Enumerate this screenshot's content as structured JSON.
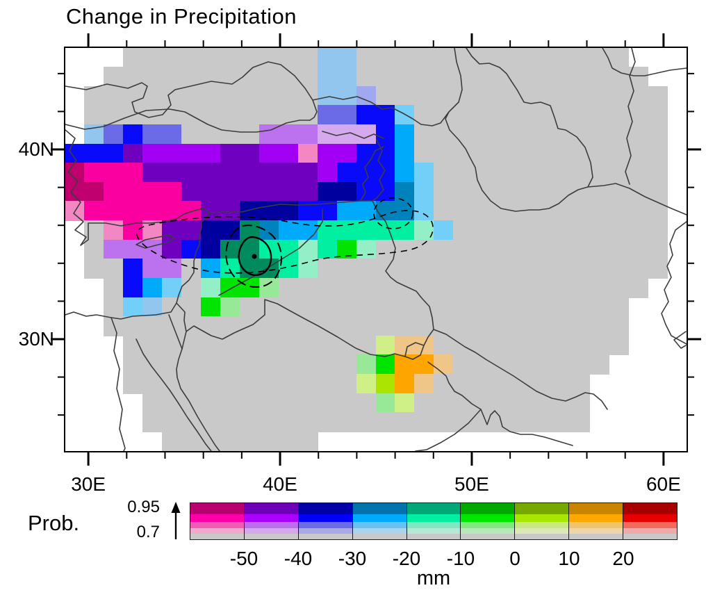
{
  "title": "Change in Precipitation",
  "axes": {
    "lon": {
      "min": 28.8,
      "max": 61.2,
      "major": [
        {
          "value": 30,
          "label": "30E"
        },
        {
          "value": 40,
          "label": "40E"
        },
        {
          "value": 50,
          "label": "50E"
        },
        {
          "value": 60,
          "label": "60E"
        }
      ],
      "minor": [
        32,
        34,
        36,
        38,
        42,
        44,
        46,
        48,
        52,
        54,
        56,
        58
      ]
    },
    "lat": {
      "min": 24.1,
      "max": 45.35,
      "major": [
        {
          "value": 40,
          "label": "40N"
        },
        {
          "value": 30,
          "label": "30N"
        }
      ],
      "minor": [
        44,
        42,
        38,
        36,
        34,
        32,
        28,
        26
      ]
    }
  },
  "colorbar": {
    "prob_label": "Prob.",
    "prob_top": "0.95",
    "prob_bottom": "0.7",
    "arrow_icon": "up-arrow",
    "unit": "mm",
    "tick_labels": [
      "-50",
      "-40",
      "-30",
      "-20",
      "-10",
      "0",
      "10",
      "20"
    ],
    "band_fractions": [
      0.3,
      0.22,
      0.18,
      0.15,
      0.15
    ],
    "columns": [
      {
        "name": "below--50",
        "bands": [
          "#B8006E",
          "#FF00A8",
          "#F05CB4",
          "#EFA9CD",
          "#C9C9C9"
        ]
      },
      {
        "name": "-50_-40",
        "bands": [
          "#6E00B8",
          "#AA00FF",
          "#BB6CEF",
          "#D3A9EC",
          "#C9C9C9"
        ]
      },
      {
        "name": "-40_-30",
        "bands": [
          "#0000A8",
          "#0000FF",
          "#6B6BE8",
          "#A9A9E8",
          "#C9C9C9"
        ]
      },
      {
        "name": "-30_-20",
        "bands": [
          "#0073AD",
          "#00AAFF",
          "#66C2F0",
          "#A9D4EC",
          "#C9C9C9"
        ]
      },
      {
        "name": "-20_-10",
        "bands": [
          "#00A878",
          "#00EFA0",
          "#7FE8C2",
          "#B7E8D6",
          "#C9C9C9"
        ]
      },
      {
        "name": "-10_0",
        "bands": [
          "#00A800",
          "#00E800",
          "#7FE87F",
          "#B7E8B7",
          "#C9C9C9"
        ]
      },
      {
        "name": "0_10",
        "bands": [
          "#78A800",
          "#A8E800",
          "#C9E87F",
          "#DCE8B7",
          "#C9C9C9"
        ]
      },
      {
        "name": "10_20",
        "bands": [
          "#C98500",
          "#FFA800",
          "#EFC46B",
          "#EFD6A9",
          "#C9C9C9"
        ]
      },
      {
        "name": "above_20",
        "bands": [
          "#A80000",
          "#E80000",
          "#F06B5C",
          "#EFA9A9",
          "#C9C9C9"
        ]
      }
    ]
  },
  "map": {
    "no_data_color": "#FFFFFF",
    "not_significant_color": "#C9C9C9",
    "palette": {
      "g": "#C9C9C9",
      "m": "#C0006E",
      "M": "#FA00A0",
      "p": "#F287C3",
      "P": "#A100F5",
      "q": "#6E00BE",
      "l": "#BC72EE",
      "L": "#D5A9EE",
      "N": "#00009E",
      "B": "#0A0AFA",
      "b": "#6B6BE8",
      "e": "#A0A8F0",
      "s": "#93C6EE",
      "C": "#00AAFA",
      "c": "#72CFF8",
      "T": "#0083BC",
      "D": "#008A5E",
      "S": "#00EFA0",
      "n": "#93EFC6",
      "G": "#00E400",
      "h": "#97E897",
      "Y": "#AAE400",
      "y": "#CFF087",
      "O": "#FFA500",
      "o": "#EFC687"
    },
    "grid_cols": 32,
    "grid_rows": [
      "...ggggggggggssgggggggggggggg...",
      "..gggggggggggssggggggggggggggg..",
      ".ggggggggggggsseggggggggggggggg.",
      ".ggggggggggggbbBBcggggggggggggg.",
      ".sbBbbgggglllLLLBCggggggggggggg.",
      "BBBqPPPPqqPPpPPBBCggggggggggggg.",
      "mMMMqqqqqqqqqPBBBCcgggggggggggg.",
      "mmMMMMqqqqqqqNNBBTcgggggggggggg.",
      "pMMMMMMqqNNNBBCCTTcgggggggggggg.",
      ".gpMpqqNNDTCCSSSSSncggggggggggg.",
      ".glllqBNDDSSnSGnggggggggggggggg.",
      ".ggBllgCSDDSngggggggggggggggggg.",
      "..gBCcgnGGhggggggggggggggggggg..",
      "..gcsggGhgggggggggggggggggggg...",
      "..ggggggggggggggggggggggggggg...",
      "...gggggggggggggyoogggggggggg...",
      "...gggggggggggghGOOogggggggg....",
      "...ggggggggggggyYOogggggggg.....",
      "....gggggggggggghyggggggggg.....",
      "....ggggggggggggggggggggggg.....",
      ".....gggggggg..................."
    ]
  }
}
